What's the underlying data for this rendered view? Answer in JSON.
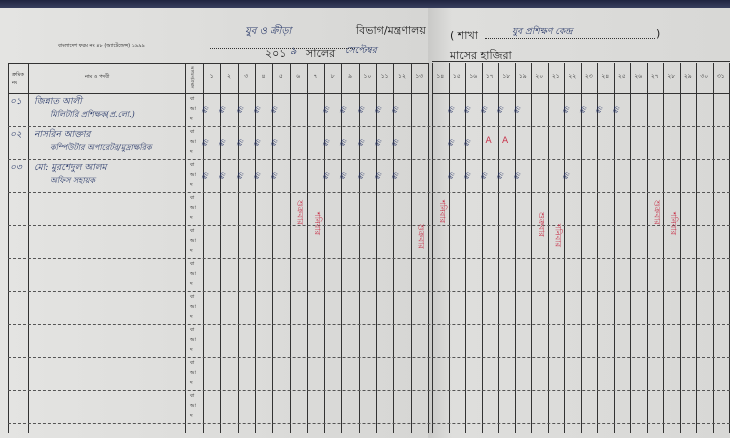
{
  "header": {
    "form_code": "বাংলাদেশ ফরম নং ৪৮ (অ্যাটেন্ডেন্স) ১৯৯৯",
    "ministry_handwritten": "যুব ও ক্রীড়া",
    "ministry_label": "বিভাগ/মন্ত্রণালয়",
    "branch_label": "( শাখা",
    "branch_handwritten": "যুব প্রশিক্ষণ কেন্দ্র",
    "branch_close": ")",
    "year_prefix": "২০১",
    "year_handwritten": "৯",
    "year_suffix": "সালের",
    "month_handwritten": "সেপ্টেম্বর",
    "title": "মাসের হাজিরা"
  },
  "columns": {
    "serial": "ক্রমিক নং",
    "name": "নাম ও পদবী",
    "marker": "আগমন/প্রস্থান",
    "days": [
      "১",
      "২",
      "৩",
      "৪",
      "৫",
      "৬",
      "৭",
      "৮",
      "৯",
      "১০",
      "১১",
      "১২",
      "১৩",
      "১৪",
      "১৫",
      "১৬",
      "১৭",
      "১৮",
      "১৯",
      "২০",
      "২১",
      "২২",
      "২৩",
      "২৪",
      "২৫",
      "২৬",
      "২৭",
      "২৮",
      "২৯",
      "৩০",
      "৩১"
    ]
  },
  "row_markers": [
    "বা",
    "আ",
    "দ"
  ],
  "employees": [
    {
      "serial": "০১",
      "name": "জিন্নাত আলী",
      "designation": "মিলিটারি প্রশিক্ষক(প্র.লো.)",
      "present_days": [
        1,
        2,
        3,
        4,
        5,
        8,
        9,
        10,
        11,
        12,
        15,
        16,
        17,
        18,
        19,
        22,
        23,
        24,
        25
      ],
      "absent_days": []
    },
    {
      "serial": "০২",
      "name": "নাসরিন আক্তার",
      "designation": "কম্পিউটার অপারেটর/মুদ্রাক্ষরিক",
      "present_days": [
        1,
        2,
        3,
        4,
        5,
        8,
        9,
        10,
        11,
        12,
        15,
        16
      ],
      "absent_days": [
        17,
        18
      ]
    },
    {
      "serial": "০৩",
      "name": "মো: মুরশেদুল আলম",
      "designation": "অফিস সহায়ক",
      "present_days": [
        1,
        2,
        3,
        4,
        5,
        8,
        9,
        10,
        11,
        12,
        15,
        16,
        17,
        18,
        19,
        22
      ],
      "absent_days": []
    }
  ],
  "absent_mark": "A",
  "holidays": [
    {
      "day": 6,
      "label": "শুক্রবার"
    },
    {
      "day": 7,
      "label": "শনিবার"
    },
    {
      "day": 13,
      "label": "শুক্রবার"
    },
    {
      "day": 14,
      "label": "শনিবার"
    },
    {
      "day": 20,
      "label": "শুক্রবার"
    },
    {
      "day": 21,
      "label": "শনিবার"
    },
    {
      "day": 27,
      "label": "শুক্রবার"
    },
    {
      "day": 28,
      "label": "শনিবার"
    }
  ],
  "colors": {
    "ink": "#1c2a60",
    "red_ink": "#c8324a",
    "paper": "#dededc"
  }
}
